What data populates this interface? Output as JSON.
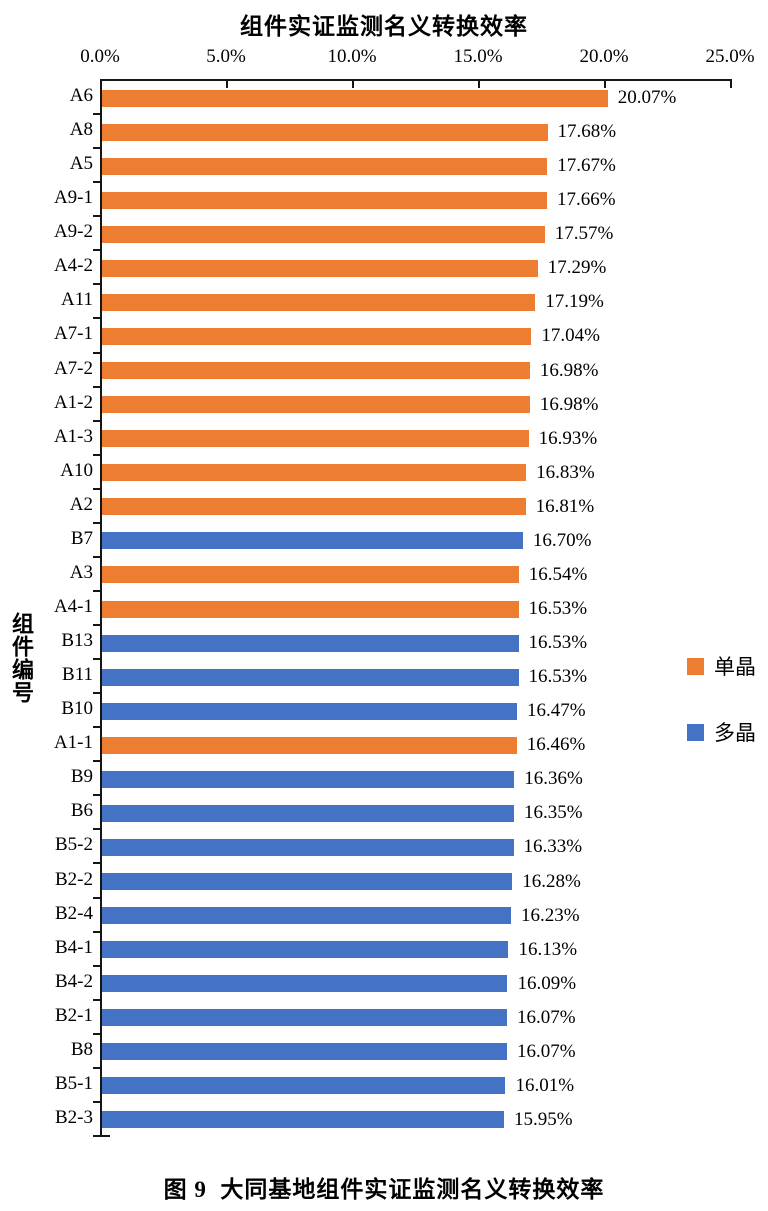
{
  "figure": {
    "title": "组件实证监测名义转换效率",
    "caption": "图 9  大同基地组件实证监测名义转换效率"
  },
  "chart_data": {
    "type": "bar",
    "orientation": "horizontal",
    "title": "组件实证监测名义转换效率",
    "ylabel": "组件编号",
    "xlabel": "",
    "xlim": [
      0,
      25
    ],
    "x_tick_values": [
      0,
      5,
      10,
      15,
      20,
      25
    ],
    "x_tick_labels": [
      "0.0%",
      "5.0%",
      "10.0%",
      "15.0%",
      "20.0%",
      "25.0%"
    ],
    "grid": false,
    "legend_position": "right-middle",
    "axis_color": "#161616",
    "series": [
      {
        "name": "单晶",
        "color": "#ED7D31"
      },
      {
        "name": "多晶",
        "color": "#4472C4"
      }
    ],
    "points": [
      {
        "category": "A6",
        "value": 20.07,
        "label": "20.07%",
        "series": "单晶"
      },
      {
        "category": "A8",
        "value": 17.68,
        "label": "17.68%",
        "series": "单晶"
      },
      {
        "category": "A5",
        "value": 17.67,
        "label": "17.67%",
        "series": "单晶"
      },
      {
        "category": "A9-1",
        "value": 17.66,
        "label": "17.66%",
        "series": "单晶"
      },
      {
        "category": "A9-2",
        "value": 17.57,
        "label": "17.57%",
        "series": "单晶"
      },
      {
        "category": "A4-2",
        "value": 17.29,
        "label": "17.29%",
        "series": "单晶"
      },
      {
        "category": "A11",
        "value": 17.19,
        "label": "17.19%",
        "series": "单晶"
      },
      {
        "category": "A7-1",
        "value": 17.04,
        "label": "17.04%",
        "series": "单晶"
      },
      {
        "category": "A7-2",
        "value": 16.98,
        "label": "16.98%",
        "series": "单晶"
      },
      {
        "category": "A1-2",
        "value": 16.98,
        "label": "16.98%",
        "series": "单晶"
      },
      {
        "category": "A1-3",
        "value": 16.93,
        "label": "16.93%",
        "series": "单晶"
      },
      {
        "category": "A10",
        "value": 16.83,
        "label": "16.83%",
        "series": "单晶"
      },
      {
        "category": "A2",
        "value": 16.81,
        "label": "16.81%",
        "series": "单晶"
      },
      {
        "category": "B7",
        "value": 16.7,
        "label": "16.70%",
        "series": "多晶"
      },
      {
        "category": "A3",
        "value": 16.54,
        "label": "16.54%",
        "series": "单晶"
      },
      {
        "category": "A4-1",
        "value": 16.53,
        "label": "16.53%",
        "series": "单晶"
      },
      {
        "category": "B13",
        "value": 16.53,
        "label": "16.53%",
        "series": "多晶"
      },
      {
        "category": "B11",
        "value": 16.53,
        "label": "16.53%",
        "series": "多晶"
      },
      {
        "category": "B10",
        "value": 16.47,
        "label": "16.47%",
        "series": "多晶"
      },
      {
        "category": "A1-1",
        "value": 16.46,
        "label": "16.46%",
        "series": "单晶"
      },
      {
        "category": "B9",
        "value": 16.36,
        "label": "16.36%",
        "series": "多晶"
      },
      {
        "category": "B6",
        "value": 16.35,
        "label": "16.35%",
        "series": "多晶"
      },
      {
        "category": "B5-2",
        "value": 16.33,
        "label": "16.33%",
        "series": "多晶"
      },
      {
        "category": "B2-2",
        "value": 16.28,
        "label": "16.28%",
        "series": "多晶"
      },
      {
        "category": "B2-4",
        "value": 16.23,
        "label": "16.23%",
        "series": "多晶"
      },
      {
        "category": "B4-1",
        "value": 16.13,
        "label": "16.13%",
        "series": "多晶"
      },
      {
        "category": "B4-2",
        "value": 16.09,
        "label": "16.09%",
        "series": "多晶"
      },
      {
        "category": "B2-1",
        "value": 16.07,
        "label": "16.07%",
        "series": "多晶"
      },
      {
        "category": "B8",
        "value": 16.07,
        "label": "16.07%",
        "series": "多晶"
      },
      {
        "category": "B5-1",
        "value": 16.01,
        "label": "16.01%",
        "series": "多晶"
      },
      {
        "category": "B2-3",
        "value": 15.95,
        "label": "15.95%",
        "series": "多晶"
      }
    ]
  }
}
